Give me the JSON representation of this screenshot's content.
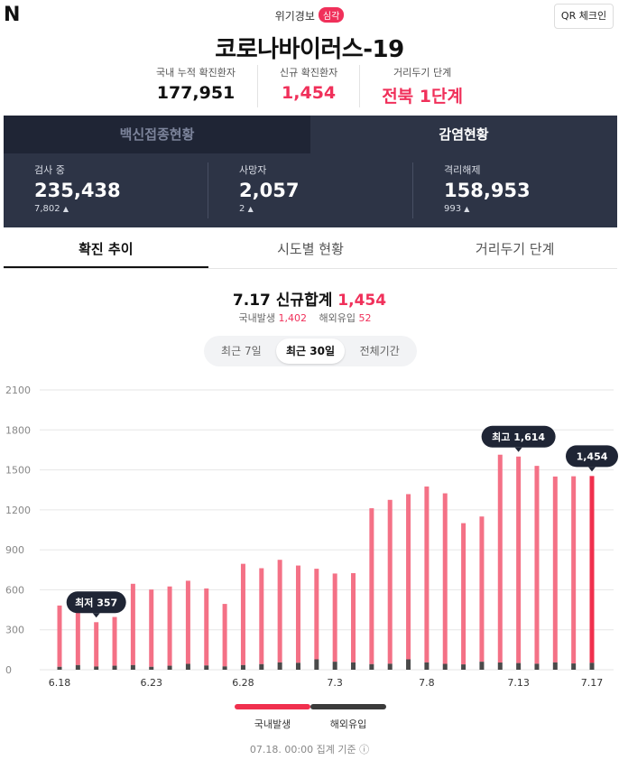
{
  "header": {
    "logo": "N",
    "alert_label": "위기경보",
    "alert_badge": "심각",
    "qr_button": "QR 체크인",
    "title": "코로나바이러스-19"
  },
  "summary": [
    {
      "label": "국내 누적 확진환자",
      "value": "177,951"
    },
    {
      "label": "신규 확진환자",
      "value": "1,454"
    },
    {
      "label": "거리두기 단계",
      "value": "전북 1단계"
    }
  ],
  "panel": {
    "tabs": [
      "백신접종현황",
      "감염현황"
    ],
    "stats": [
      {
        "label": "검사 중",
        "value": "235,438",
        "delta": "7,802"
      },
      {
        "label": "사망자",
        "value": "2,057",
        "delta": "2"
      },
      {
        "label": "격리해제",
        "value": "158,953",
        "delta": "993"
      }
    ]
  },
  "subtabs": [
    "확진 추이",
    "시도별 현황",
    "거리두기 단계"
  ],
  "headline": {
    "date": "7.17 신규합계",
    "total": "1,454"
  },
  "breakdown": {
    "domestic_label": "국내발생",
    "domestic_value": "1,402",
    "overseas_label": "해외유입",
    "overseas_value": "52"
  },
  "range_options": [
    "최근 7일",
    "최근 30일",
    "전체기간"
  ],
  "chart_data": {
    "type": "bar",
    "categories": [
      "6.18",
      "6.19",
      "6.20",
      "6.21",
      "6.22",
      "6.23",
      "6.24",
      "6.25",
      "6.26",
      "6.27",
      "6.28",
      "6.29",
      "6.30",
      "7.1",
      "7.2",
      "7.3",
      "7.4",
      "7.5",
      "7.6",
      "7.7",
      "7.8",
      "7.9",
      "7.10",
      "7.11",
      "7.12",
      "7.13",
      "7.14",
      "7.15",
      "7.16",
      "7.17"
    ],
    "x_tick_labels": [
      "6.18",
      "6.23",
      "6.28",
      "7.3",
      "7.8",
      "7.13",
      "7.17"
    ],
    "series": [
      {
        "name": "국내발생",
        "values": [
          460,
          400,
          333,
          366,
          610,
          580,
          595,
          624,
          578,
          469,
          760,
          720,
          770,
          730,
          680,
          662,
          670,
          1170,
          1230,
          1240,
          1320,
          1280,
          1060,
          1090,
          1560,
          1550,
          1485,
          1395,
          1405,
          1402
        ]
      },
      {
        "name": "해외유입",
        "values": [
          22,
          35,
          24,
          30,
          35,
          22,
          30,
          44,
          32,
          25,
          35,
          42,
          55,
          52,
          78,
          60,
          55,
          42,
          45,
          78,
          55,
          44,
          40,
          60,
          54,
          50,
          45,
          55,
          47,
          52
        ]
      }
    ],
    "yticks": [
      0,
      300,
      600,
      900,
      1200,
      1500,
      1800,
      2100
    ],
    "ylim": [
      0,
      2100
    ],
    "annotations": [
      {
        "label": "최저 357",
        "index": 2
      },
      {
        "label": "최고 1,614",
        "index": 25
      },
      {
        "label": "1,454",
        "index": 29
      }
    ],
    "colors": {
      "domestic": "#f47186",
      "overseas": "#4a4a4a",
      "latest": "#f0304e",
      "tooltip": "#1f2535",
      "grid": "#e6e6e6"
    }
  },
  "legend": [
    {
      "label": "국내발생",
      "color": "#f0304e"
    },
    {
      "label": "해외유입",
      "color": "#3b3b3b"
    }
  ],
  "footer": "07.18. 00:00 집계 기준 ⓘ"
}
